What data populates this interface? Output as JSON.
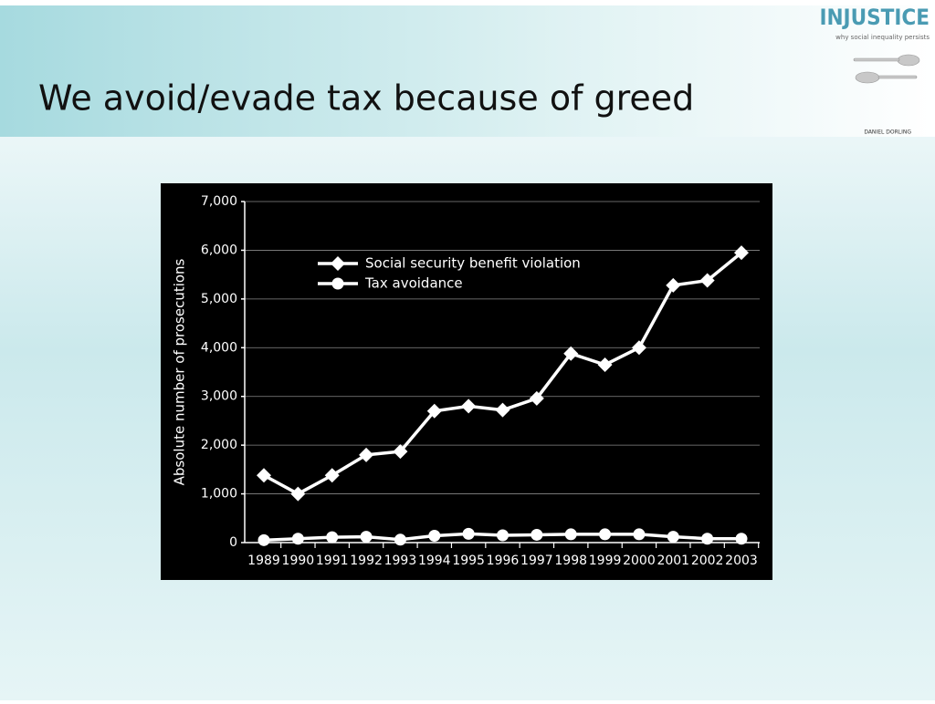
{
  "slide": {
    "title": "We avoid/evade tax because of greed",
    "logo": "INJUSTICE",
    "tagline": "why social inequality persists",
    "author": "DANIEL DORLING"
  },
  "chart_data": {
    "type": "line",
    "y_label": "Absolute number of prosecutions",
    "categories": [
      "1989",
      "1990",
      "1991",
      "1992",
      "1993",
      "1994",
      "1995",
      "1996",
      "1997",
      "1998",
      "1999",
      "2000",
      "2001",
      "2002",
      "2003"
    ],
    "series": [
      {
        "name": "Social security benefit violation",
        "color": "#ffffff",
        "marker": "diamond",
        "values": [
          1380,
          1000,
          1380,
          1800,
          1870,
          2700,
          2800,
          2720,
          2960,
          3880,
          3650,
          4000,
          5280,
          5380,
          5950
        ]
      },
      {
        "name": "Tax avoidance",
        "color": "#ffffff",
        "marker": "circle",
        "values": [
          50,
          80,
          110,
          120,
          60,
          140,
          180,
          150,
          160,
          170,
          170,
          170,
          120,
          80,
          80
        ]
      }
    ],
    "ylim": [
      0,
      7000
    ],
    "yticks": [
      0,
      {
        "value": 1000,
        "label": "1,000"
      },
      {
        "value": 2000,
        "label": "2,000"
      },
      {
        "value": 3000,
        "label": "3,000"
      },
      {
        "value": 4000,
        "label": "4,000"
      },
      {
        "value": 5000,
        "label": "5,000"
      },
      {
        "value": 6000,
        "label": "6,000"
      },
      {
        "value": 7000,
        "label": "7,000"
      }
    ],
    "grid": true
  }
}
